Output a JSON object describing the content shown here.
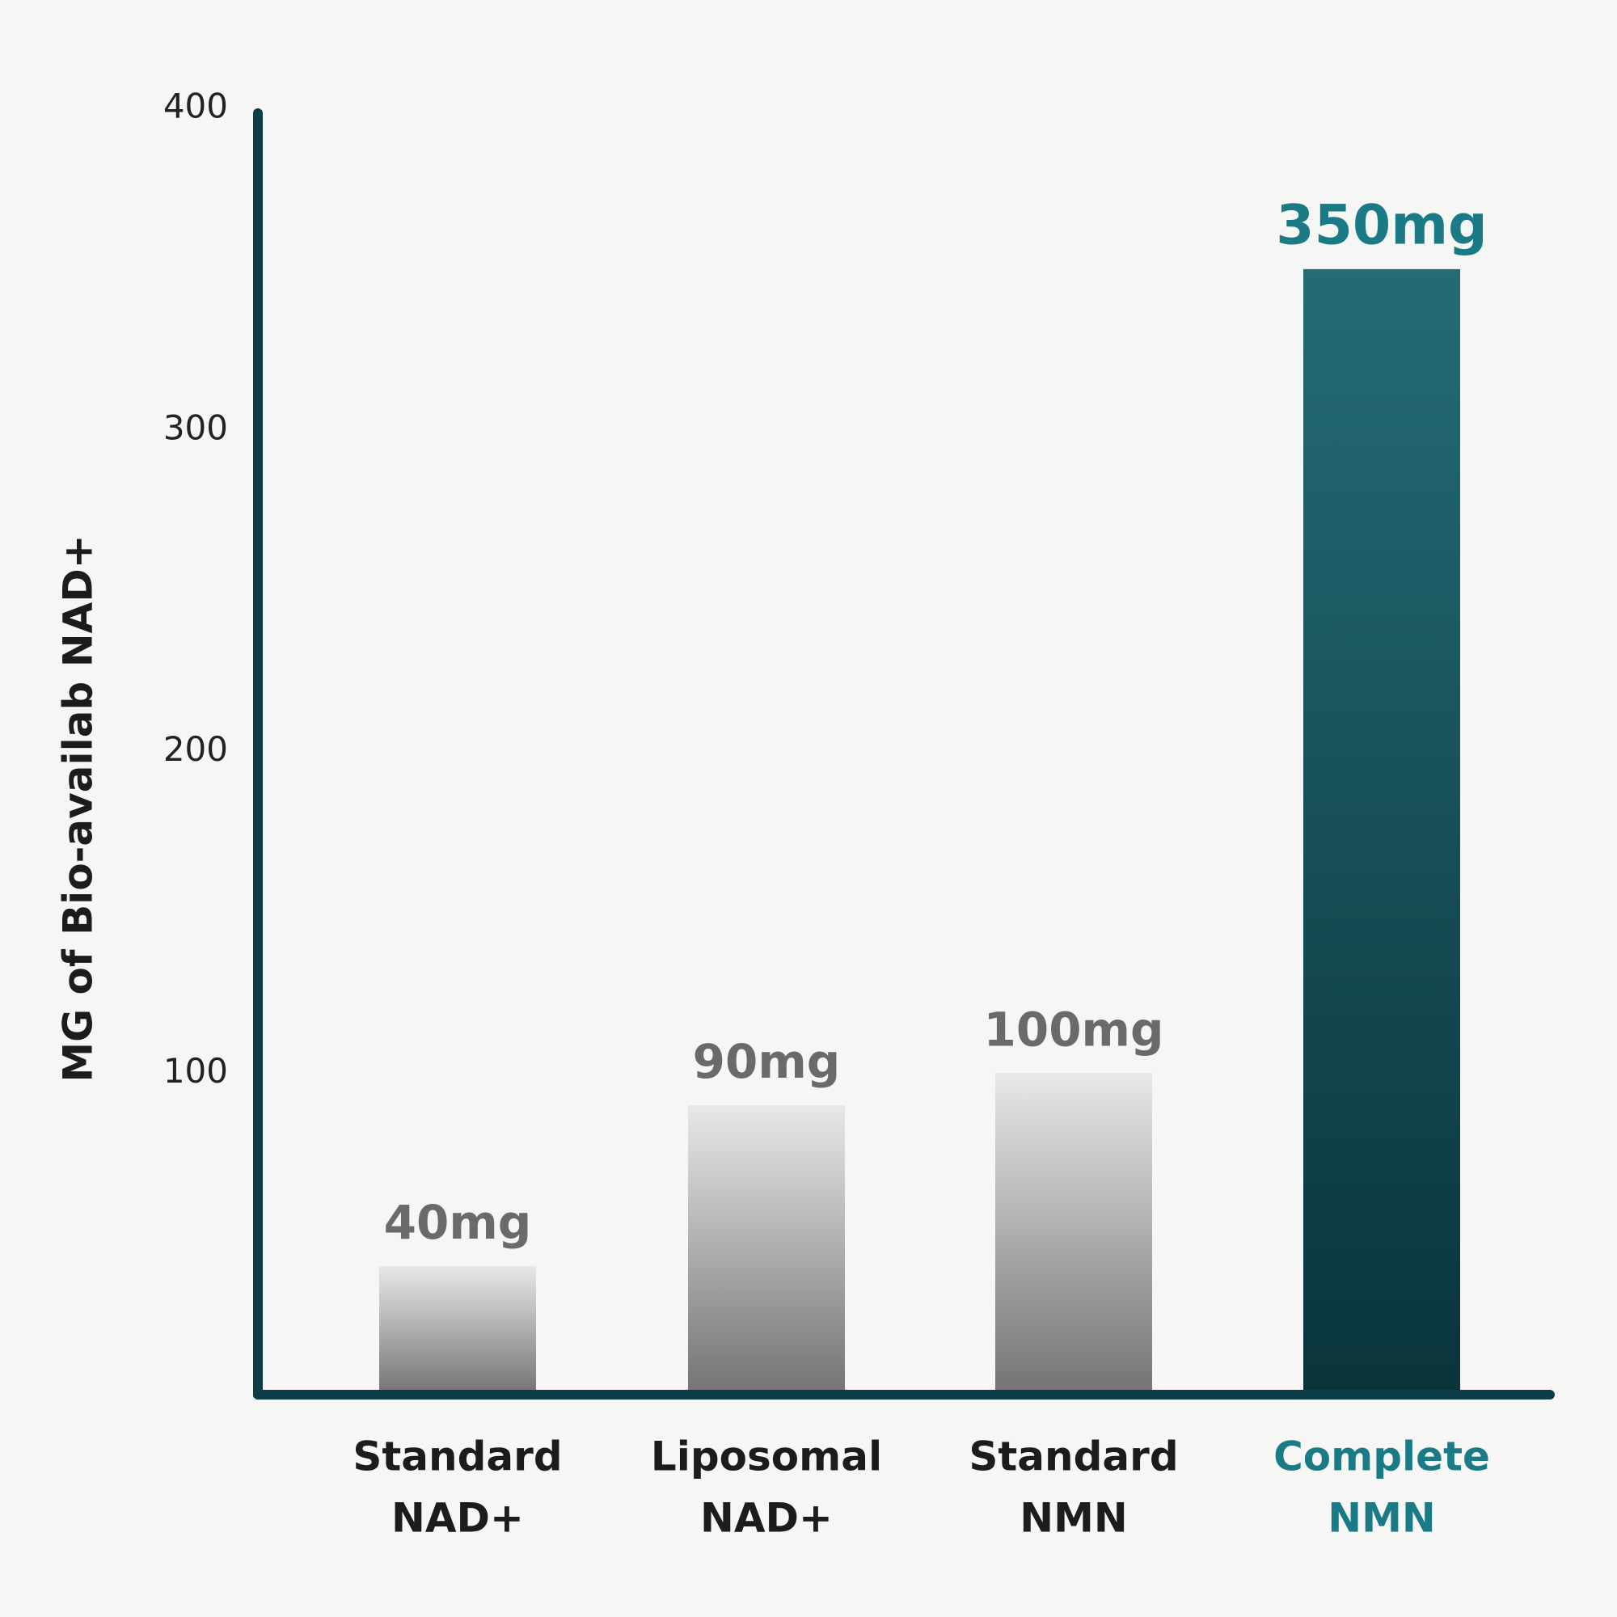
{
  "chart_data": {
    "type": "bar",
    "y_label": "MG of Bio-availab NAD+",
    "categories": [
      [
        "Standard",
        "NAD+"
      ],
      [
        "Liposomal",
        "NAD+"
      ],
      [
        "Standard",
        "NMN"
      ],
      [
        "Complete",
        "NMN"
      ]
    ],
    "values": [
      40,
      90,
      100,
      350
    ],
    "value_labels": [
      "40mg",
      "90mg",
      "100mg",
      "350mg"
    ],
    "colors": [
      "#a4a4a4",
      "#a4a4a4",
      "#a4a4a4",
      "#115e6a"
    ],
    "label_colors": [
      "#6a6a6a",
      "#6a6a6a",
      "#6a6a6a",
      "#1a7a85"
    ],
    "category_colors": [
      "#1c1c1c",
      "#1c1c1c",
      "#1c1c1c",
      "#1a7a85"
    ],
    "axis_color": "#0d3d47",
    "ylim": [
      0,
      400
    ],
    "yticks": [
      100,
      200,
      300,
      400
    ],
    "grid": false
  }
}
